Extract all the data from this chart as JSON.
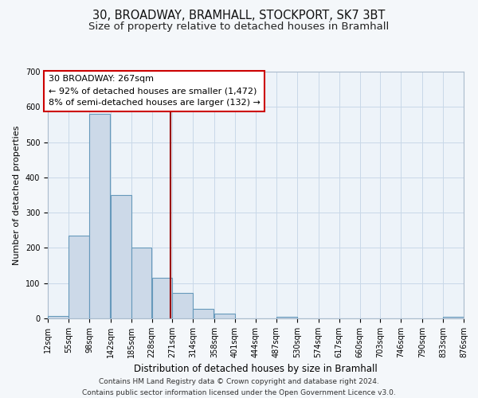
{
  "title": "30, BROADWAY, BRAMHALL, STOCKPORT, SK7 3BT",
  "subtitle": "Size of property relative to detached houses in Bramhall",
  "xlabel": "Distribution of detached houses by size in Bramhall",
  "ylabel": "Number of detached properties",
  "footer_line1": "Contains HM Land Registry data © Crown copyright and database right 2024.",
  "footer_line2": "Contains public sector information licensed under the Open Government Licence v3.0.",
  "bin_edges": [
    12,
    55,
    98,
    142,
    185,
    228,
    271,
    314,
    358,
    401,
    444,
    487,
    530,
    574,
    617,
    660,
    703,
    746,
    790,
    833,
    876
  ],
  "bin_counts": [
    7,
    235,
    580,
    350,
    202,
    116,
    72,
    27,
    13,
    0,
    0,
    5,
    0,
    0,
    0,
    0,
    0,
    0,
    0,
    5
  ],
  "bar_color": "#ccd9e8",
  "bar_edge_color": "#6699bb",
  "property_size": 267,
  "vline_color": "#990000",
  "annotation_text_line1": "30 BROADWAY: 267sqm",
  "annotation_text_line2": "← 92% of detached houses are smaller (1,472)",
  "annotation_text_line3": "8% of semi-detached houses are larger (132) →",
  "annotation_box_edge_color": "#cc0000",
  "annotation_box_face_color": "#ffffff",
  "ylim": [
    0,
    700
  ],
  "tick_labels": [
    "12sqm",
    "55sqm",
    "98sqm",
    "142sqm",
    "185sqm",
    "228sqm",
    "271sqm",
    "314sqm",
    "358sqm",
    "401sqm",
    "444sqm",
    "487sqm",
    "530sqm",
    "574sqm",
    "617sqm",
    "660sqm",
    "703sqm",
    "746sqm",
    "790sqm",
    "833sqm",
    "876sqm"
  ],
  "background_color": "#f4f7fa",
  "plot_background_color": "#edf3f9",
  "grid_color": "#c8d8e8",
  "title_fontsize": 10.5,
  "subtitle_fontsize": 9.5,
  "xlabel_fontsize": 8.5,
  "ylabel_fontsize": 8,
  "tick_fontsize": 7,
  "annotation_fontsize": 8,
  "footer_fontsize": 6.5,
  "ytick_labels": [
    "0",
    "100",
    "200",
    "300",
    "400",
    "500",
    "600",
    "700"
  ]
}
